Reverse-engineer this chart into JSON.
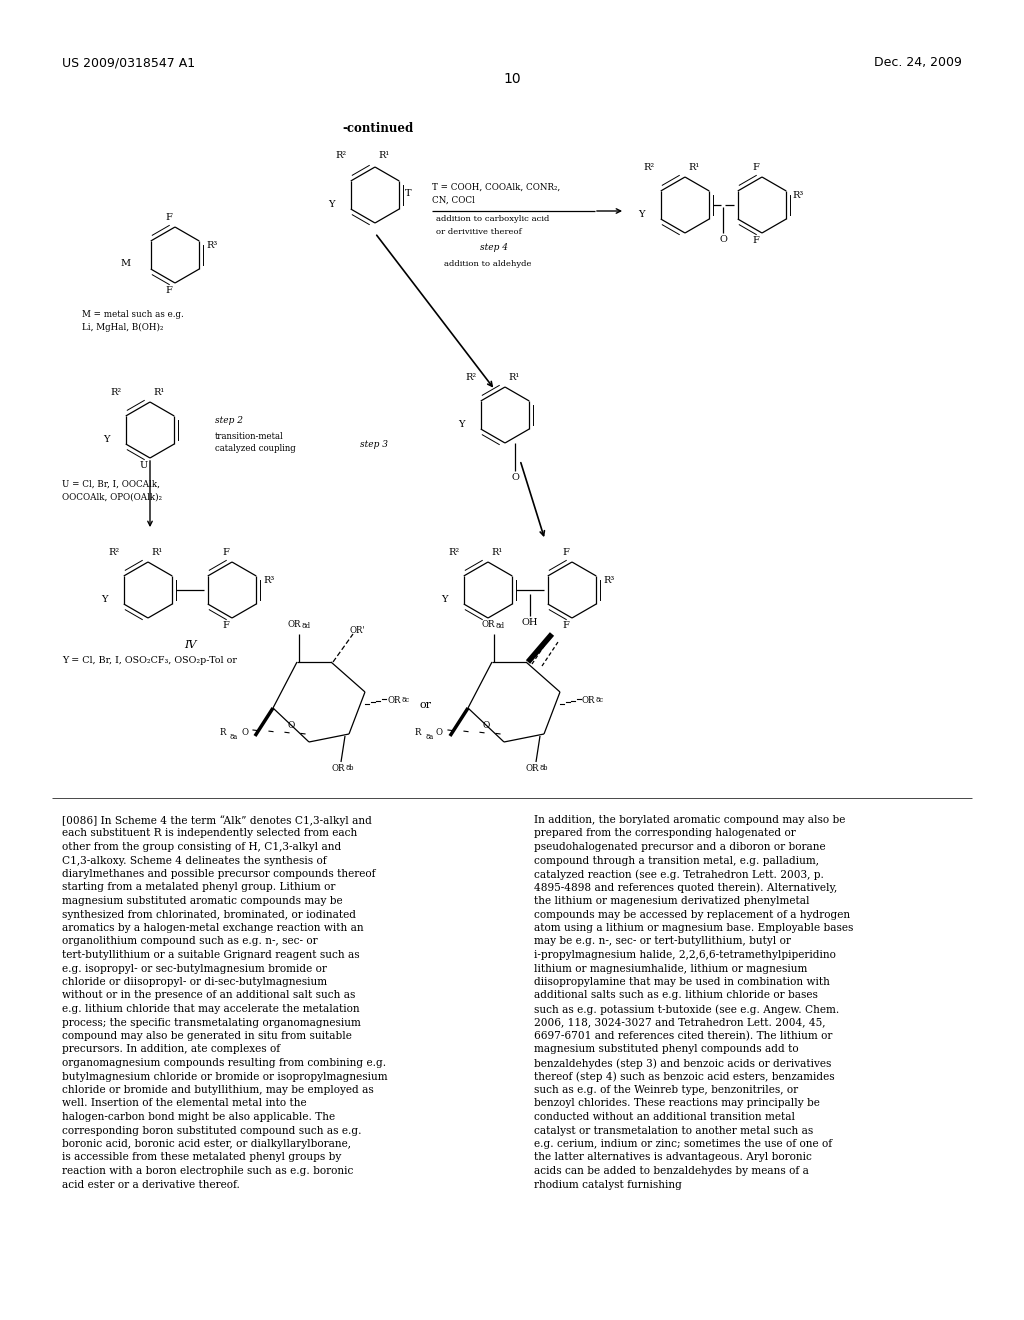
{
  "page_header_left": "US 2009/0318547 A1",
  "page_header_right": "Dec. 24, 2009",
  "page_number": "10",
  "background_color": "#ffffff",
  "body_text_left": "[0086]   In Scheme 4 the term “Alk” denotes C1,3-alkyl and each substituent R is independently selected from each other from the group consisting of H, C1,3-alkyl and C1,3-alkoxy. Scheme 4 delineates the synthesis of diarylmethanes and possible precursor compounds thereof starting from a metalated phenyl group. Lithium or magnesium substituted aromatic compounds may be synthesized from chlorinated, brominated, or iodinated aromatics by a halogen-metal exchange reaction with an organolithium compound such as e.g. n-, sec- or tert-butyllithium or a suitable Grignard reagent such as e.g. isopropyl- or sec-butylmagnesium bromide or chloride or diisopropyl- or di-sec-butylmagnesium without or in the presence of an additional salt such as e.g. lithium chloride that may accelerate the metalation process; the specific transmetalating organomagnesium compound may also be generated in situ from suitable precursors. In addition, ate complexes of organomagnesium compounds resulting from combining e.g. butylmagnesium chloride or bromide or isopropylmagnesium chloride or bromide and butyllithium, may be employed as well. Insertion of the elemental metal into the halogen-carbon bond might be also applicable. The corresponding boron substituted compound such as e.g. boronic acid, boronic acid ester, or dialkyllarylborane, is accessible from these metalated phenyl groups by reaction with a boron electrophile such as e.g. boronic acid ester or a derivative thereof.",
  "body_text_right": "In addition, the borylated aromatic compound may also be prepared from the corresponding halogenated or pseudohalogenated precursor and a diboron or borane compound through a transition metal, e.g. palladium, catalyzed reaction (see e.g. Tetrahedron Lett. 2003, p. 4895-4898 and references quoted therein). Alternatively, the lithium or magenesium derivatized phenylmetal compounds may be accessed by replacement of a hydrogen atom using a lithium or magnesium base. Employable bases may be e.g. n-, sec- or tert-butyllithium, butyl or i-propylmagnesium halide, 2,2,6,6-tetramethylpiperidino lithium or magnesiumhalide, lithium or magnesium diisopropylamine that may be used in combination with additional salts such as e.g. lithium chloride or bases such as e.g. potassium t-butoxide (see e.g. Angew. Chem. 2006, 118, 3024-3027 and Tetrahedron Lett. 2004, 45, 6697-6701 and references cited therein). The lithium or magnesium substituted phenyl compounds add to benzaldehydes (step 3) and benzoic acids or derivatives thereof (step 4) such as benzoic acid esters, benzamides such as e.g. of the Weinreb type, benzonitriles, or benzoyl chlorides. These reactions may principally be conducted without an additional transition metal catalyst or transmetalation to another metal such as e.g. cerium, indium or zinc; sometimes the use of one of the latter alternatives is advantageous. Aryl boronic acids can be added to benzaldehydes by means of a rhodium catalyst furnishing"
}
